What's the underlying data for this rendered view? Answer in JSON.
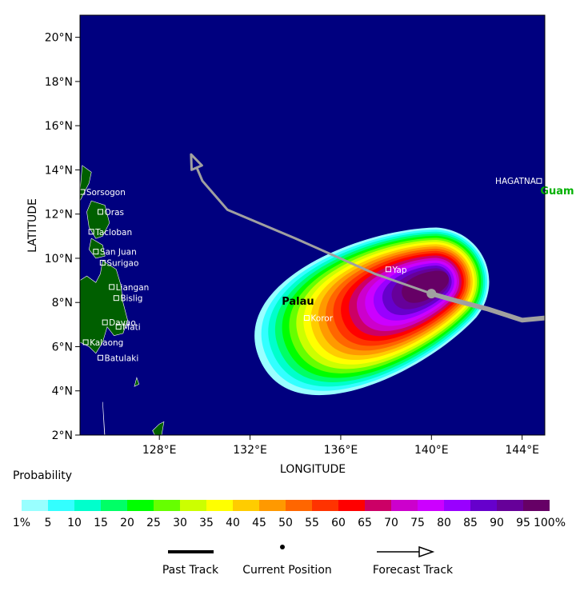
{
  "map": {
    "lon_range": [
      124.5,
      145
    ],
    "lat_range": [
      2,
      21
    ],
    "lon_ticks": [
      128,
      132,
      136,
      140,
      144
    ],
    "lat_ticks": [
      2,
      4,
      6,
      8,
      10,
      12,
      14,
      16,
      18,
      20
    ],
    "lon_tick_labels": [
      "128°E",
      "132°E",
      "136°E",
      "140°E",
      "144°E"
    ],
    "lat_tick_labels": [
      "2°N",
      "4°N",
      "6°N",
      "8°N",
      "10°N",
      "12°N",
      "14°N",
      "16°N",
      "18°N",
      "20°N"
    ],
    "xlabel": "LONGITUDE",
    "ylabel": "LATITUDE",
    "ocean_color": "#00007f",
    "land_color": "#005f00",
    "current_position": {
      "lon": 140.0,
      "lat": 8.4
    },
    "past_track": [
      [
        140.0,
        8.4
      ],
      [
        141.0,
        8.1
      ],
      [
        142.5,
        7.7
      ],
      [
        144.0,
        7.2
      ],
      [
        145.0,
        7.3
      ]
    ],
    "forecast_track": [
      [
        140.0,
        8.4
      ],
      [
        137.5,
        9.3
      ],
      [
        134.0,
        10.9
      ],
      [
        131.0,
        12.2
      ],
      [
        129.9,
        13.5
      ],
      [
        129.4,
        14.7
      ]
    ],
    "places": [
      {
        "name": "Sorsogon",
        "lon": 124.6,
        "lat": 13.0
      },
      {
        "name": "Oras",
        "lon": 125.4,
        "lat": 12.1
      },
      {
        "name": "Tacloban",
        "lon": 125.0,
        "lat": 11.2
      },
      {
        "name": "San Juan",
        "lon": 125.2,
        "lat": 10.3
      },
      {
        "name": "Surigao",
        "lon": 125.5,
        "lat": 9.8
      },
      {
        "name": "Liangan",
        "lon": 125.9,
        "lat": 8.7
      },
      {
        "name": "Bislig",
        "lon": 126.1,
        "lat": 8.2
      },
      {
        "name": "Davao",
        "lon": 125.6,
        "lat": 7.1
      },
      {
        "name": "Mati",
        "lon": 126.2,
        "lat": 6.9
      },
      {
        "name": "Kalaong",
        "lon": 124.75,
        "lat": 6.2
      },
      {
        "name": "Batulaki",
        "lon": 125.4,
        "lat": 5.5
      },
      {
        "name": "Koror",
        "lon": 134.5,
        "lat": 7.3
      },
      {
        "name": "Yap",
        "lon": 138.1,
        "lat": 9.5
      },
      {
        "name": "HAGATNA",
        "lon": 144.75,
        "lat": 13.5
      }
    ],
    "region_labels": [
      {
        "name": "Palau",
        "lon": 133.4,
        "lat": 7.9,
        "color": "#000000"
      },
      {
        "name": "Guam",
        "lon": 144.8,
        "lat": 12.9,
        "color": "#00b000"
      }
    ]
  },
  "probability": {
    "center": {
      "lon": 140.2,
      "lat": 8.95
    },
    "axis_angle_deg": -24,
    "outer_extent": {
      "back": 8.5,
      "front": 2.8,
      "half_width": 3.5
    }
  },
  "legend": {
    "title": "Probability",
    "colors": [
      "#99ffff",
      "#33ffff",
      "#00ffcc",
      "#00ff66",
      "#00ff00",
      "#66ff00",
      "#ccff00",
      "#ffff00",
      "#ffcc00",
      "#ff9900",
      "#ff6600",
      "#ff3300",
      "#ff0000",
      "#cc0066",
      "#cc00cc",
      "#cc00ff",
      "#9900ff",
      "#6600cc",
      "#660099",
      "#660066"
    ],
    "labels": [
      "1%",
      "5",
      "10",
      "15",
      "20",
      "25",
      "30",
      "35",
      "40",
      "45",
      "50",
      "55",
      "60",
      "65",
      "70",
      "75",
      "80",
      "85",
      "90",
      "95",
      "100%"
    ],
    "key": {
      "past_track": "Past Track",
      "current_position": "Current Position",
      "forecast_track": "Forecast Track"
    }
  }
}
